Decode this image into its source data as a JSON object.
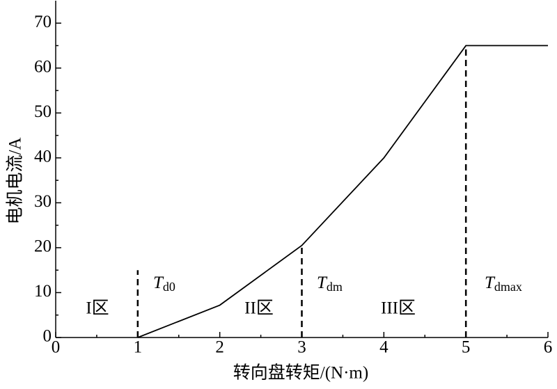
{
  "chart_data": {
    "type": "line",
    "xlabel": "转向盘转矩/(N·m)",
    "ylabel": "电机电流/A",
    "x": [
      1,
      2,
      3,
      4,
      5,
      6
    ],
    "values": [
      0,
      7.2,
      20.5,
      40,
      65,
      65
    ],
    "color": "#000000",
    "xlim": [
      0,
      6
    ],
    "ylim": [
      0,
      75
    ],
    "xticks": [
      0,
      1,
      2,
      3,
      4,
      5,
      6
    ],
    "yticks": [
      0,
      10,
      20,
      30,
      40,
      50,
      60,
      70
    ],
    "x_minor_ticks": [
      0.5,
      1.5,
      2.5,
      3.5,
      4.5,
      5.5
    ],
    "y_minor_ticks": [
      5,
      15,
      25,
      35,
      45,
      55,
      65
    ],
    "grid": false,
    "vlines": [
      {
        "x": 1,
        "y": 15
      },
      {
        "x": 3,
        "y": 20.5
      },
      {
        "x": 5,
        "y": 65
      }
    ],
    "regions": [
      "I区",
      "II区",
      "III区"
    ],
    "thresholds": [
      {
        "text": "T",
        "sub": "d0"
      },
      {
        "text": "T",
        "sub": "dm"
      },
      {
        "text": "T",
        "sub": "dmax"
      }
    ]
  }
}
